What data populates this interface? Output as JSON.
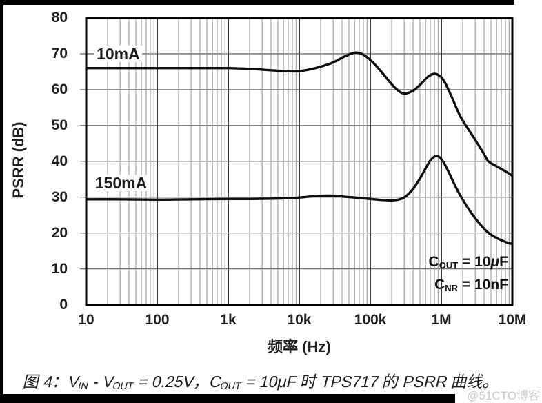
{
  "page": {
    "watermark": "@51CTO博客"
  },
  "colors": {
    "background": "#ffffff",
    "curve": "#0d0d0d",
    "frame": "#000000",
    "grid_major": "#3c3c3c",
    "grid_minor": "#949494",
    "grid_horizontal": "#6f6f6f",
    "text": "#1f1f1f",
    "watermark": "#c8cacc",
    "border_bars": "#000000"
  },
  "chart_data": {
    "type": "line",
    "title": "",
    "xlabel": "频率 (Hz)",
    "ylabel": "PSRR (dB)",
    "x_scale": "log",
    "x_range": [
      10,
      10000000
    ],
    "y_range": [
      0,
      80
    ],
    "grid": "on",
    "x_ticks": [
      10,
      100,
      1000,
      10000,
      100000,
      1000000,
      10000000
    ],
    "x_tick_labels": [
      "10",
      "100",
      "1k",
      "10k",
      "100k",
      "1M",
      "10M"
    ],
    "x_minor_multipliers": [
      2,
      3,
      4,
      5,
      6,
      7,
      8,
      9
    ],
    "y_ticks": [
      80,
      70,
      60,
      50,
      40,
      30,
      20,
      10,
      0
    ],
    "legend": "inline curve labels",
    "series": [
      {
        "name": "10mA",
        "label_pos": {
          "f": 14,
          "db": 70
        },
        "points": [
          [
            10,
            66
          ],
          [
            20,
            66
          ],
          [
            50,
            66
          ],
          [
            100,
            66
          ],
          [
            200,
            66
          ],
          [
            500,
            66
          ],
          [
            1000,
            66
          ],
          [
            1500,
            65.9
          ],
          [
            2500,
            65.7
          ],
          [
            4000,
            65.4
          ],
          [
            6000,
            65.2
          ],
          [
            9000,
            65.1
          ],
          [
            13000,
            65.5
          ],
          [
            20000,
            66.4
          ],
          [
            30000,
            67.6
          ],
          [
            45000,
            69.4
          ],
          [
            60000,
            70.3
          ],
          [
            75000,
            70.0
          ],
          [
            100000,
            68.3
          ],
          [
            140000,
            65.2
          ],
          [
            200000,
            61.5
          ],
          [
            260000,
            59.4
          ],
          [
            310000,
            58.9
          ],
          [
            400000,
            59.7
          ],
          [
            500000,
            61.3
          ],
          [
            650000,
            63.6
          ],
          [
            800000,
            64.4
          ],
          [
            950000,
            63.8
          ],
          [
            1100000,
            62.3
          ],
          [
            1400000,
            58.0
          ],
          [
            1800000,
            53.0
          ],
          [
            2300000,
            49.5
          ],
          [
            3000000,
            46.0
          ],
          [
            4000000,
            42.0
          ],
          [
            4600000,
            40.0
          ],
          [
            6000000,
            38.6
          ],
          [
            8000000,
            37.2
          ],
          [
            10000000,
            36.0
          ]
        ]
      },
      {
        "name": "150mA",
        "label_pos": {
          "f": 13.3,
          "db": 34
        },
        "points": [
          [
            10,
            29.4
          ],
          [
            30,
            29.4
          ],
          [
            100,
            29.3
          ],
          [
            300,
            29.4
          ],
          [
            1000,
            29.5
          ],
          [
            2000,
            29.5
          ],
          [
            4000,
            29.6
          ],
          [
            7000,
            29.7
          ],
          [
            10000,
            29.9
          ],
          [
            15000,
            30.2
          ],
          [
            22000,
            30.4
          ],
          [
            30000,
            30.4
          ],
          [
            45000,
            30.1
          ],
          [
            70000,
            29.8
          ],
          [
            100000,
            29.5
          ],
          [
            150000,
            29.2
          ],
          [
            200000,
            29.1
          ],
          [
            260000,
            29.4
          ],
          [
            320000,
            30.3
          ],
          [
            400000,
            32.3
          ],
          [
            500000,
            35.2
          ],
          [
            600000,
            38.0
          ],
          [
            700000,
            40.2
          ],
          [
            830000,
            41.5
          ],
          [
            950000,
            41.1
          ],
          [
            1100000,
            39.4
          ],
          [
            1300000,
            36.6
          ],
          [
            1600000,
            32.8
          ],
          [
            2000000,
            29.3
          ],
          [
            2600000,
            25.8
          ],
          [
            3400000,
            22.8
          ],
          [
            4500000,
            20.2
          ],
          [
            6000000,
            18.6
          ],
          [
            8000000,
            17.5
          ],
          [
            10000000,
            16.9
          ]
        ]
      }
    ],
    "annotations": [
      {
        "segments": [
          {
            "t": "C"
          },
          {
            "t": "OUT",
            "sub": true
          },
          {
            "t": " = 10"
          },
          {
            "t": "μ",
            "i": true
          },
          {
            "t": "F"
          }
        ]
      },
      {
        "segments": [
          {
            "t": "C"
          },
          {
            "t": "NR",
            "sub": true
          },
          {
            "t": " = 10nF"
          }
        ]
      }
    ]
  },
  "caption": {
    "segments": [
      {
        "t": "图 4：V"
      },
      {
        "t": "IN",
        "sub": true
      },
      {
        "t": " - V"
      },
      {
        "t": "OUT",
        "sub": true
      },
      {
        "t": " = 0.25V，C"
      },
      {
        "t": "OUT",
        "sub": true
      },
      {
        "t": " = 10μF 时 TPS717 的 PSRR 曲线。"
      }
    ]
  }
}
